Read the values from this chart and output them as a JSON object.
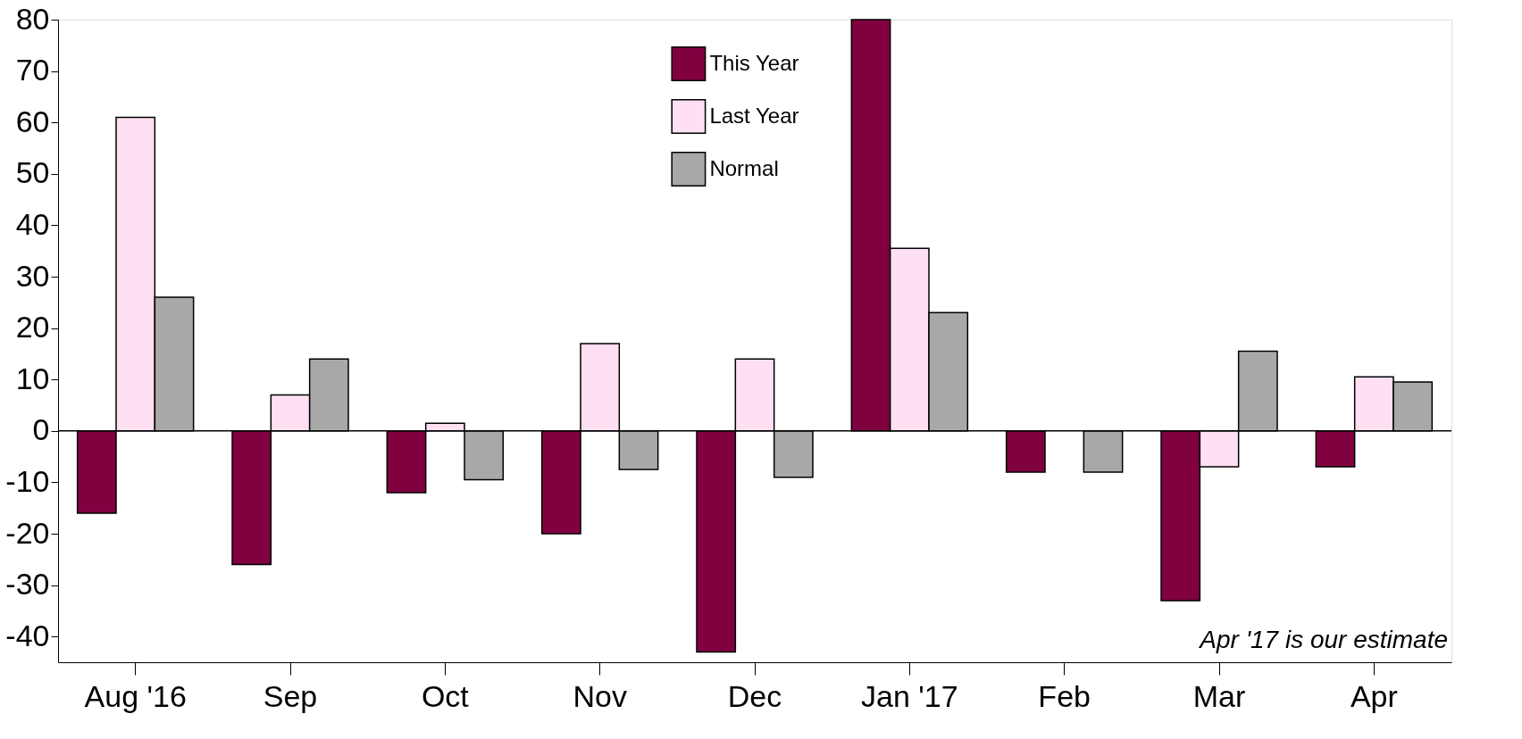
{
  "chart_data": {
    "type": "bar",
    "categories": [
      "Aug '16",
      "Sep",
      "Oct",
      "Nov",
      "Dec",
      "Jan '17",
      "Feb",
      "Mar",
      "Apr"
    ],
    "series": [
      {
        "name": "This Year",
        "color": "#800040",
        "values": [
          -16,
          -26,
          -12,
          -20,
          -43,
          80,
          -8,
          -33,
          -7
        ]
      },
      {
        "name": "Last Year",
        "color": "#ffe0f2",
        "values": [
          61,
          7,
          1.5,
          17,
          14,
          35.5,
          null,
          -7,
          10.5
        ]
      },
      {
        "name": "Normal",
        "color": "#a8a8a8",
        "values": [
          26,
          14,
          -9.5,
          -7.5,
          -9,
          23,
          -8,
          15.5,
          9.5
        ]
      }
    ],
    "ylim": [
      -45,
      80
    ],
    "yticks": [
      -40,
      -30,
      -20,
      -10,
      0,
      10,
      20,
      30,
      40,
      50,
      60,
      70,
      80
    ],
    "ref_lines": [
      {
        "axis": "y",
        "value": 0
      }
    ],
    "annotations": [
      "Apr '17 is our estimate"
    ],
    "legend": "top",
    "grid": false
  }
}
